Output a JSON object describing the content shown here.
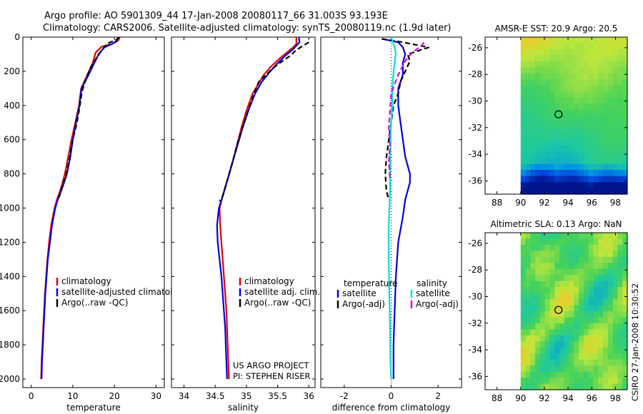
{
  "header": {
    "line1": "Argo profile: AO 5901309_44 17-Jan-2008 20080117_66 31.003S 93.193E",
    "line2": "Climatology: CARS2006. Satellite-adjusted climatology: synTS_20080119.nc (1.9d later)"
  },
  "footer_text": {
    "project": "US ARGO PROJECT",
    "pi": "PI: STEPHEN RISER",
    "stamp": "CSIRO 27-Jan-2008 10:30:52"
  },
  "colors": {
    "climatology": "#e00000",
    "satellite": "#0000e0",
    "argo": "#000000",
    "sal_sat": "#00e0e0",
    "sal_argo": "#e000e0"
  },
  "chart_data": [
    {
      "type": "line",
      "id": "temperature",
      "xlabel": "temperature",
      "ylabel": "",
      "xlim": [
        -2,
        32
      ],
      "ylim": [
        0,
        2050
      ],
      "y_reversed": true,
      "xticks": [
        0,
        10,
        20,
        30
      ],
      "yticks": [
        0,
        200,
        400,
        600,
        800,
        1000,
        1200,
        1400,
        1600,
        1800,
        2000
      ],
      "legend": [
        "climatology",
        "satellite-adjusted climatology",
        "Argo(..raw -QC)"
      ],
      "series": [
        {
          "name": "climatology",
          "style": "solid",
          "color": "#e00000",
          "points": [
            [
              21.3,
              0
            ],
            [
              20.9,
              20
            ],
            [
              19.5,
              40
            ],
            [
              17.0,
              55
            ],
            [
              15.5,
              90
            ],
            [
              14.8,
              150
            ],
            [
              13.5,
              220
            ],
            [
              12.0,
              300
            ],
            [
              11.5,
              400
            ],
            [
              10.6,
              500
            ],
            [
              9.7,
              600
            ],
            [
              8.9,
              700
            ],
            [
              8.1,
              800
            ],
            [
              7.2,
              880
            ],
            [
              6.2,
              950
            ],
            [
              5.6,
              1000
            ],
            [
              4.8,
              1100
            ],
            [
              4.3,
              1200
            ],
            [
              3.9,
              1300
            ],
            [
              3.6,
              1400
            ],
            [
              3.3,
              1500
            ],
            [
              3.1,
              1600
            ],
            [
              2.9,
              1700
            ],
            [
              2.7,
              1800
            ],
            [
              2.5,
              1900
            ],
            [
              2.4,
              2000
            ]
          ]
        },
        {
          "name": "satellite-adjusted climatology",
          "style": "solid",
          "color": "#0000e0",
          "points": [
            [
              21.0,
              0
            ],
            [
              20.6,
              20
            ],
            [
              19.4,
              40
            ],
            [
              17.6,
              60
            ],
            [
              16.2,
              100
            ],
            [
              15.0,
              160
            ],
            [
              13.6,
              230
            ],
            [
              12.1,
              300
            ],
            [
              11.6,
              400
            ],
            [
              10.8,
              500
            ],
            [
              10.0,
              600
            ],
            [
              9.4,
              700
            ],
            [
              8.6,
              800
            ],
            [
              7.5,
              880
            ],
            [
              6.4,
              950
            ],
            [
              5.8,
              1000
            ],
            [
              5.0,
              1100
            ],
            [
              4.5,
              1200
            ],
            [
              4.0,
              1300
            ],
            [
              3.7,
              1400
            ],
            [
              3.4,
              1500
            ],
            [
              3.2,
              1600
            ],
            [
              3.0,
              1700
            ],
            [
              2.8,
              1800
            ],
            [
              2.6,
              1900
            ],
            [
              2.5,
              2000
            ]
          ]
        },
        {
          "name": "Argo(..raw -QC)",
          "style": "dashed",
          "color": "#000000",
          "points": [
            [
              21.2,
              0
            ],
            [
              20.5,
              15
            ],
            [
              18.5,
              35
            ],
            [
              17.5,
              60
            ],
            [
              16.0,
              110
            ],
            [
              14.5,
              170
            ],
            [
              13.2,
              240
            ],
            [
              12.2,
              320
            ],
            [
              11.7,
              400
            ],
            [
              11.0,
              500
            ],
            [
              10.0,
              600
            ],
            [
              9.3,
              700
            ],
            [
              8.4,
              800
            ],
            [
              7.4,
              880
            ],
            [
              6.8,
              930
            ],
            [
              6.3,
              950
            ]
          ]
        }
      ]
    },
    {
      "type": "line",
      "id": "salinity",
      "xlabel": "salinity",
      "xlim": [
        33.8,
        36.1
      ],
      "ylim": [
        0,
        2050
      ],
      "y_reversed": true,
      "xticks": [
        34,
        34.5,
        35,
        35.5,
        36
      ],
      "yticks": [
        0,
        200,
        400,
        600,
        800,
        1000,
        1200,
        1400,
        1600,
        1800,
        2000
      ],
      "legend": [
        "climatology",
        "satellite adj. clim.",
        "Argo(..raw -QC)"
      ],
      "series": [
        {
          "name": "climatology",
          "style": "solid",
          "color": "#e00000",
          "points": [
            [
              35.8,
              0
            ],
            [
              35.8,
              40
            ],
            [
              35.75,
              60
            ],
            [
              35.55,
              120
            ],
            [
              35.4,
              170
            ],
            [
              35.28,
              220
            ],
            [
              35.2,
              270
            ],
            [
              35.1,
              330
            ],
            [
              35.0,
              430
            ],
            [
              34.92,
              530
            ],
            [
              34.85,
              630
            ],
            [
              34.78,
              730
            ],
            [
              34.7,
              830
            ],
            [
              34.62,
              930
            ],
            [
              34.57,
              1000
            ],
            [
              34.58,
              1100
            ],
            [
              34.6,
              1200
            ],
            [
              34.62,
              1300
            ],
            [
              34.64,
              1400
            ],
            [
              34.66,
              1500
            ],
            [
              34.68,
              1600
            ],
            [
              34.69,
              1700
            ],
            [
              34.7,
              1800
            ],
            [
              34.71,
              1900
            ],
            [
              34.72,
              2000
            ]
          ]
        },
        {
          "name": "satellite adj. clim.",
          "style": "solid",
          "color": "#0000e0",
          "points": [
            [
              35.84,
              0
            ],
            [
              35.85,
              30
            ],
            [
              35.75,
              70
            ],
            [
              35.62,
              110
            ],
            [
              35.48,
              160
            ],
            [
              35.36,
              210
            ],
            [
              35.25,
              260
            ],
            [
              35.14,
              330
            ],
            [
              35.03,
              430
            ],
            [
              34.94,
              530
            ],
            [
              34.86,
              630
            ],
            [
              34.78,
              730
            ],
            [
              34.7,
              830
            ],
            [
              34.62,
              930
            ],
            [
              34.56,
              1000
            ],
            [
              34.53,
              1100
            ],
            [
              34.54,
              1200
            ],
            [
              34.57,
              1300
            ],
            [
              34.6,
              1400
            ],
            [
              34.62,
              1500
            ],
            [
              34.64,
              1600
            ],
            [
              34.66,
              1700
            ],
            [
              34.67,
              1800
            ],
            [
              34.68,
              1900
            ],
            [
              34.69,
              2000
            ]
          ]
        },
        {
          "name": "Argo(..raw -QC)",
          "style": "dashed",
          "color": "#000000",
          "points": [
            [
              36.0,
              30
            ],
            [
              35.8,
              75
            ],
            [
              35.7,
              110
            ],
            [
              35.56,
              145
            ],
            [
              35.43,
              180
            ],
            [
              35.33,
              215
            ],
            [
              35.2,
              260
            ],
            [
              35.12,
              330
            ],
            [
              35.03,
              430
            ],
            [
              34.94,
              530
            ],
            [
              34.85,
              630
            ],
            [
              34.78,
              730
            ],
            [
              34.7,
              830
            ],
            [
              34.62,
              930
            ],
            [
              34.57,
              960
            ]
          ]
        }
      ]
    },
    {
      "type": "line",
      "id": "difference",
      "xlabel": "difference from climatology",
      "xlim": [
        -3,
        3
      ],
      "ylim": [
        0,
        2050
      ],
      "y_reversed": true,
      "xticks": [
        -2,
        0,
        2
      ],
      "yticks": [
        0,
        200,
        400,
        600,
        800,
        1000,
        1200,
        1400,
        1600,
        1800,
        2000
      ],
      "legend_headings": [
        "temperature",
        "salinity"
      ],
      "legend": [
        "satellite",
        "Argo(-adj)",
        "satellite",
        "Argo(-adj)"
      ],
      "series": [
        {
          "name": "temperature satellite",
          "style": "solid",
          "color": "#0000e0",
          "points": [
            [
              -0.4,
              10
            ],
            [
              0.3,
              30
            ],
            [
              0.5,
              60
            ],
            [
              0.6,
              100
            ],
            [
              0.5,
              150
            ],
            [
              0.5,
              220
            ],
            [
              0.3,
              300
            ],
            [
              0.3,
              400
            ],
            [
              0.4,
              500
            ],
            [
              0.5,
              600
            ],
            [
              0.6,
              700
            ],
            [
              0.8,
              800
            ],
            [
              0.8,
              850
            ],
            [
              0.6,
              950
            ],
            [
              0.5,
              1050
            ],
            [
              0.3,
              1200
            ],
            [
              0.2,
              1400
            ],
            [
              0.15,
              1600
            ],
            [
              0.1,
              1800
            ],
            [
              0.1,
              2000
            ]
          ]
        },
        {
          "name": "temperature Argo(-adj)",
          "style": "dashed",
          "color": "#000000",
          "points": [
            [
              -0.4,
              10
            ],
            [
              0.5,
              30
            ],
            [
              1.6,
              60
            ],
            [
              0.7,
              100
            ],
            [
              0.8,
              140
            ],
            [
              0.6,
              200
            ],
            [
              0.4,
              260
            ],
            [
              0.3,
              330
            ],
            [
              0.1,
              400
            ],
            [
              0.0,
              500
            ],
            [
              -0.1,
              600
            ],
            [
              -0.2,
              700
            ],
            [
              -0.25,
              800
            ],
            [
              -0.2,
              900
            ],
            [
              -0.1,
              950
            ]
          ]
        },
        {
          "name": "salinity satellite",
          "style": "solid",
          "color": "#00e0e0",
          "points": [
            [
              0.0,
              0
            ],
            [
              0.1,
              40
            ],
            [
              0.2,
              90
            ],
            [
              0.15,
              150
            ],
            [
              0.1,
              200
            ],
            [
              0.05,
              300
            ],
            [
              0.05,
              400
            ],
            [
              0.0,
              500
            ],
            [
              -0.05,
              700
            ],
            [
              -0.05,
              900
            ],
            [
              -0.1,
              1100
            ],
            [
              -0.1,
              1300
            ],
            [
              -0.08,
              1500
            ],
            [
              -0.05,
              1700
            ],
            [
              -0.03,
              1900
            ],
            [
              0.0,
              2000
            ]
          ]
        },
        {
          "name": "salinity Argo(-adj)",
          "style": "dashed",
          "color": "#e000e0",
          "points": [
            [
              1.4,
              30
            ],
            [
              1.3,
              50
            ],
            [
              0.9,
              90
            ],
            [
              0.6,
              140
            ],
            [
              0.3,
              220
            ],
            [
              0.0,
              330
            ],
            [
              -0.05,
              430
            ],
            [
              -0.1,
              530
            ],
            [
              -0.05,
              630
            ],
            [
              -0.1,
              730
            ],
            [
              -0.05,
              830
            ]
          ]
        }
      ]
    },
    {
      "type": "heatmap",
      "id": "sst-map",
      "title": "AMSR-E SST: 20.9 Argo: 20.5",
      "xlim": [
        87,
        99
      ],
      "ylim": [
        -37,
        -25.2
      ],
      "xticks": [
        88,
        90,
        92,
        94,
        96,
        98
      ],
      "yticks": [
        -26,
        -28,
        -30,
        -32,
        -34,
        -36
      ],
      "data_extent_x": [
        90,
        99
      ],
      "argo_position": {
        "lon": 93.193,
        "lat": -31.003
      }
    },
    {
      "type": "heatmap",
      "id": "sla-map",
      "title": "Altimetric SLA: 0.13 Argo: NaN",
      "xlim": [
        87,
        99
      ],
      "ylim": [
        -37,
        -25.2
      ],
      "xticks": [
        88,
        90,
        92,
        94,
        96,
        98
      ],
      "yticks": [
        -26,
        -28,
        -30,
        -32,
        -34,
        -36
      ],
      "data_extent_x": [
        90,
        99
      ],
      "argo_position": {
        "lon": 93.193,
        "lat": -31.003
      }
    }
  ]
}
